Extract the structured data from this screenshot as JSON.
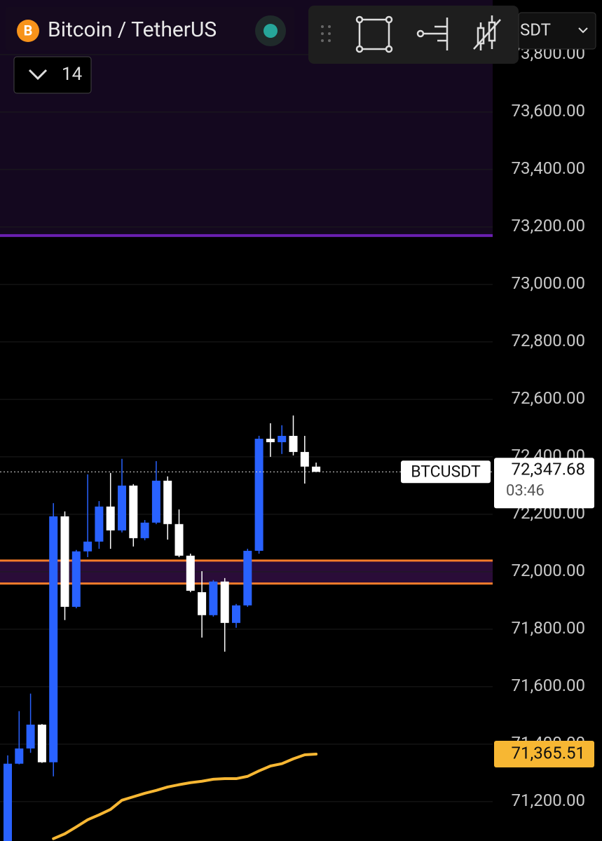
{
  "chart_data": {
    "type": "candlestick",
    "symbol_title": "Bitcoin / TetherUS",
    "indicator_length": "14",
    "currency_partial": "SDT",
    "ticker": "BTCUSDT",
    "countdown": "03:46",
    "open": [
      71060,
      71332,
      71385,
      71468,
      71337,
      72193,
      71878,
      72071,
      72105,
      72227,
      72144,
      72300,
      72117,
      72171,
      72317,
      72166,
      72056,
      71929,
      71849,
      71966,
      71822,
      71883,
      72073,
      72463,
      72451,
      72473,
      72417,
      72366
    ],
    "high": [
      71361,
      71515,
      71576,
      71470,
      72239,
      72210,
      72076,
      72339,
      72246,
      72344,
      72393,
      72305,
      72180,
      72385,
      72332,
      72217,
      72063,
      72002,
      71971,
      71978,
      71888,
      72080,
      72473,
      72517,
      72510,
      72544,
      72473,
      72380
    ],
    "low": [
      71060,
      71330,
      71370,
      71335,
      71288,
      71832,
      71873,
      72051,
      72080,
      72080,
      72137,
      72088,
      72110,
      72166,
      72112,
      72051,
      71929,
      71771,
      71844,
      71722,
      71805,
      71878,
      72063,
      72400,
      72410,
      72405,
      72307,
      72347.68
    ],
    "close": [
      71332,
      71385,
      71468,
      71337,
      72193,
      71878,
      72071,
      72105,
      72227,
      72144,
      72300,
      72117,
      72171,
      72317,
      72166,
      72056,
      71934,
      71849,
      71966,
      71822,
      71883,
      72073,
      72463,
      72451,
      72473,
      72417,
      72366,
      72347.68
    ],
    "up_color": "#2962ff",
    "down_color": "#ffffff",
    "ma": {
      "color": "#f7b733",
      "values": [
        null,
        null,
        null,
        null,
        71071,
        71088,
        71112,
        71137,
        71154,
        71173,
        71205,
        71217,
        71229,
        71239,
        71251,
        71259,
        71266,
        71271,
        71278,
        71280,
        71280,
        71288,
        71307,
        71324,
        71332,
        71349,
        71363,
        71365.51
      ]
    },
    "ma_label": {
      "value": 71365.51,
      "label": "71,365.51"
    },
    "price_label": {
      "value": 72347.68,
      "label": "72,347.68"
    },
    "purple_line": 73170,
    "orange_lines": [
      72039,
      71959
    ],
    "ylim": [
      71063,
      73990
    ],
    "yticks": [
      {
        "value": 71200,
        "label": "71,200.00"
      },
      {
        "value": 71400,
        "label": "71,400.00"
      },
      {
        "value": 71600,
        "label": "71,600.00"
      },
      {
        "value": 71800,
        "label": "71,800.00"
      },
      {
        "value": 72000,
        "label": "72,000.00"
      },
      {
        "value": 72200,
        "label": "72,200.00"
      },
      {
        "value": 72400,
        "label": "72,400.00"
      },
      {
        "value": 72600,
        "label": "72,600.00"
      },
      {
        "value": 72800,
        "label": "72,800.00"
      },
      {
        "value": 73000,
        "label": "73,000.00"
      },
      {
        "value": 73200,
        "label": "73,200.00"
      },
      {
        "value": 73400,
        "label": "73,400.00"
      },
      {
        "value": 73600,
        "label": "73,600.00"
      },
      {
        "value": 73800,
        "label": "73,800.00"
      }
    ],
    "grid": true
  }
}
